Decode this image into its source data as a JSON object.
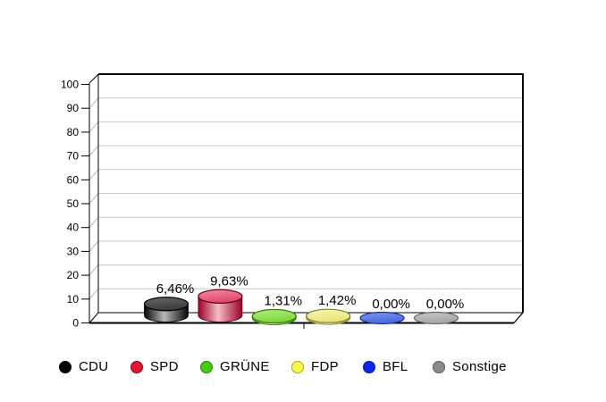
{
  "page": {
    "background": "#ffffff"
  },
  "chart_data": {
    "type": "bar",
    "style": "3d-cylinder",
    "title": "",
    "xlabel": "",
    "ylabel": "",
    "categories": [
      "CDU",
      "SPD",
      "GRÜNE",
      "FDP",
      "BFL",
      "Sonstige"
    ],
    "values": [
      6.46,
      9.63,
      1.31,
      1.42,
      0.0,
      0.0
    ],
    "value_labels": [
      "6,46%",
      "9,63%",
      "1,31%",
      "1,42%",
      "0,00%",
      "0,00%"
    ],
    "ylim": [
      0,
      100
    ],
    "y_ticks": [
      0,
      10,
      20,
      30,
      40,
      50,
      60,
      70,
      80,
      90,
      100
    ],
    "y_tick_labels": [
      "0",
      "10",
      "20",
      "30",
      "40",
      "50",
      "60",
      "70",
      "80",
      "90",
      "100"
    ],
    "grid": true,
    "legend_position": "bottom",
    "colors": {
      "grid_line": "#c9c9c9",
      "axis_line": "#000000",
      "tick_diagonal": "#b8b8b8",
      "wall_fill": "#ffffff",
      "label_text": "#000000"
    },
    "series_colors": [
      {
        "name": "CDU",
        "legend": "#000000",
        "legend_edge": "#000000",
        "top": "#3a3a3a",
        "top_light": "#6a6a6a",
        "side_dark": "#050505",
        "side_light": "#b8b8b8",
        "outline": "#000000"
      },
      {
        "name": "SPD",
        "legend": "#e81430",
        "legend_edge": "#8a0018",
        "top": "#e4466b",
        "top_light": "#f48ca1",
        "side_dark": "#9c0024",
        "side_light": "#f8bcc8",
        "outline": "#58001a"
      },
      {
        "name": "GRÜNE",
        "legend": "#42cc0a",
        "legend_edge": "#2c8800",
        "top": "#7ed63e",
        "top_light": "#b2ec7e",
        "side_dark": "#46a00a",
        "side_light": "#d6f6b4",
        "outline": "#357c00"
      },
      {
        "name": "FDP",
        "legend": "#f8f840",
        "legend_edge": "#a8a820",
        "top": "#e8e47e",
        "top_light": "#f8f6b0",
        "side_dark": "#a8a844",
        "side_light": "#fcfad8",
        "outline": "#7e7e26"
      },
      {
        "name": "BFL",
        "legend": "#0a28f0",
        "legend_edge": "#0018a0",
        "top": "#4a6ae0",
        "top_light": "#7c96ee",
        "side_dark": "#1c2c96",
        "side_light": "#7c96ee",
        "outline": "#1c2c96"
      },
      {
        "name": "Sonstige",
        "legend": "#8a8a8a",
        "legend_edge": "#5a5a5a",
        "top": "#a6a6a6",
        "top_light": "#c6c6c6",
        "side_dark": "#6e6e6e",
        "side_light": "#d0d0d0",
        "outline": "#666666"
      }
    ]
  }
}
